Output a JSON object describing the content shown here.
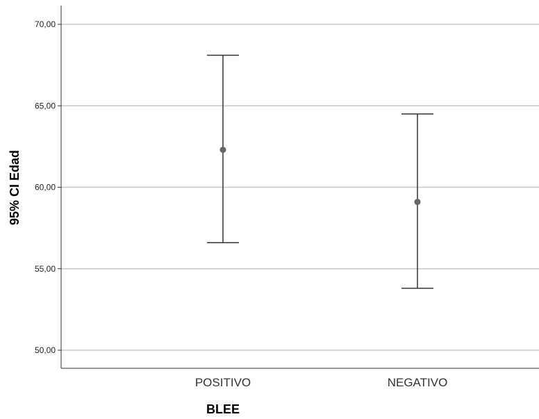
{
  "chart_data": {
    "type": "error_bar",
    "xlabel": "BLEE",
    "ylabel": "95% CI Edad",
    "ylim": [
      50,
      70
    ],
    "yticks": [
      "50,00",
      "55,00",
      "60,00",
      "65,00",
      "70,00"
    ],
    "ytick_values": [
      50,
      55,
      60,
      65,
      70
    ],
    "categories": [
      "POSITIVO",
      "NEGATIVO"
    ],
    "means": [
      62.3,
      59.1
    ],
    "lower": [
      56.6,
      53.8
    ],
    "upper": [
      68.1,
      64.5
    ],
    "grid": true,
    "colors": {
      "gridline": "#c8c8c8",
      "axis": "#333333",
      "bar": "#333333",
      "point": "#666666"
    }
  }
}
